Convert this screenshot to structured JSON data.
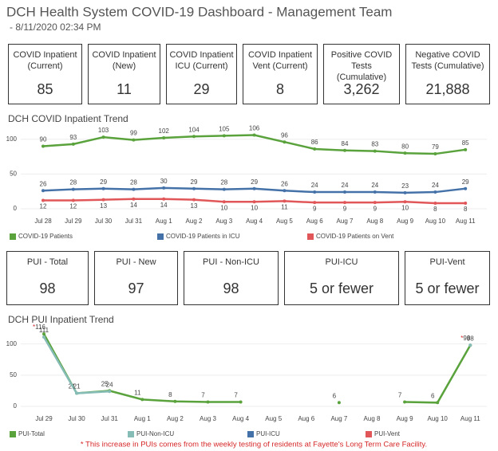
{
  "header": {
    "title": "DCH Health System COVID-19 Dashboard - Management Team",
    "subtitle": "- 8/11/2020 02:34 PM"
  },
  "kpis": [
    {
      "label": "COVID Inpatient (Current)",
      "value": "85"
    },
    {
      "label": "COVID Inpatient (New)",
      "value": "11"
    },
    {
      "label": "COVID Inpatient ICU (Current)",
      "value": "29"
    },
    {
      "label": "COVID Inpatient Vent (Current)",
      "value": "8"
    },
    {
      "label": "Positive COVID Tests (Cumulative)",
      "value": "3,262"
    },
    {
      "label": "Negative COVID Tests (Cumulative)",
      "value": "21,888"
    }
  ],
  "pui_kpis": [
    {
      "label": "PUI - Total",
      "value": "98"
    },
    {
      "label": "PUI - New",
      "value": "97"
    },
    {
      "label": "PUI - Non-ICU",
      "value": "98"
    },
    {
      "label": "PUI-ICU",
      "value": "5 or fewer"
    },
    {
      "label": "PUI-Vent",
      "value": "5 or fewer"
    }
  ],
  "chart_data": [
    {
      "type": "line",
      "title": "DCH COVID Inpatient Trend",
      "categories": [
        "Jul 28",
        "Jul 29",
        "Jul 30",
        "Jul 31",
        "Aug 1",
        "Aug 2",
        "Aug 3",
        "Aug 4",
        "Aug 5",
        "Aug 6",
        "Aug 7",
        "Aug 8",
        "Aug 9",
        "Aug 10",
        "Aug 11"
      ],
      "series": [
        {
          "name": "COVID-19 Patients",
          "color": "#59a23c",
          "values": [
            90,
            93,
            103,
            99,
            102,
            104,
            105,
            106,
            96,
            86,
            84,
            83,
            80,
            79,
            85
          ]
        },
        {
          "name": "COVID-19 Patients in ICU",
          "color": "#4472a8",
          "values": [
            26,
            28,
            29,
            28,
            30,
            29,
            28,
            29,
            26,
            24,
            24,
            24,
            23,
            24,
            29
          ]
        },
        {
          "name": "COVID-19 Patients on Vent",
          "color": "#e15759",
          "values": [
            12,
            12,
            13,
            14,
            14,
            13,
            10,
            10,
            11,
            9,
            9,
            9,
            10,
            8,
            8
          ]
        }
      ],
      "ylim": [
        0,
        110
      ],
      "yticks": [
        0,
        50,
        100
      ],
      "grid": true
    },
    {
      "type": "line",
      "title": "DCH PUI Inpatient Trend",
      "categories": [
        "Jul 29",
        "Jul 30",
        "Jul 31",
        "Aug 1",
        "Aug 2",
        "Aug 3",
        "Aug 4",
        "Aug 5",
        "Aug 6",
        "Aug 7",
        "Aug 8",
        "Aug 9",
        "Aug 10",
        "Aug 11"
      ],
      "series": [
        {
          "name": "PUI-Total",
          "color": "#59a23c",
          "values": [
            116,
            21,
            25,
            11,
            8,
            7,
            7,
            null,
            null,
            6,
            null,
            7,
            6,
            98
          ],
          "value_labels": [
            "*116",
            "21",
            "25",
            "11",
            "8",
            "7",
            "7",
            null,
            null,
            "6",
            null,
            "7",
            "6",
            "*98"
          ]
        },
        {
          "name": "PUI-Non-ICU",
          "color": "#86bcb6",
          "values": [
            111,
            21,
            24,
            null,
            null,
            null,
            null,
            null,
            null,
            null,
            null,
            null,
            null,
            98
          ]
        },
        {
          "name": "PUI-ICU",
          "color": "#4472a8",
          "values": [
            null,
            null,
            null,
            null,
            null,
            null,
            null,
            null,
            null,
            null,
            null,
            null,
            null,
            null
          ]
        },
        {
          "name": "PUI-Vent",
          "color": "#e15759",
          "values": [
            null,
            null,
            null,
            null,
            null,
            null,
            null,
            null,
            null,
            null,
            null,
            null,
            null,
            null
          ]
        }
      ],
      "ylim": [
        0,
        120
      ],
      "yticks": [
        0,
        50,
        100
      ],
      "grid": true,
      "footnote": "* This increase in PUIs comes from the weekly testing of residents at Fayette's Long Term Care Facility."
    }
  ]
}
